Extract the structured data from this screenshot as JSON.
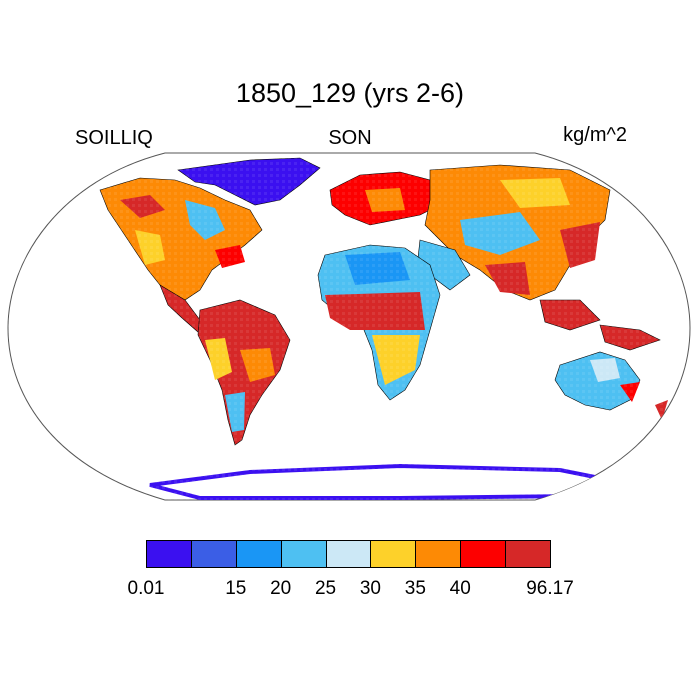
{
  "title": "1850_129 (yrs 2-6)",
  "variable": "SOILLIQ",
  "season": "SON",
  "units": "kg/m^2",
  "colorbar": {
    "colors": [
      "#3b10f0",
      "#3b5ee6",
      "#1a96f5",
      "#4ec0f2",
      "#cce8f6",
      "#fdd12a",
      "#fd8a05",
      "#fd0000",
      "#d62828"
    ],
    "tick_labels": [
      "0.01",
      "15",
      "20",
      "25",
      "30",
      "35",
      "40",
      "96.17"
    ]
  }
}
